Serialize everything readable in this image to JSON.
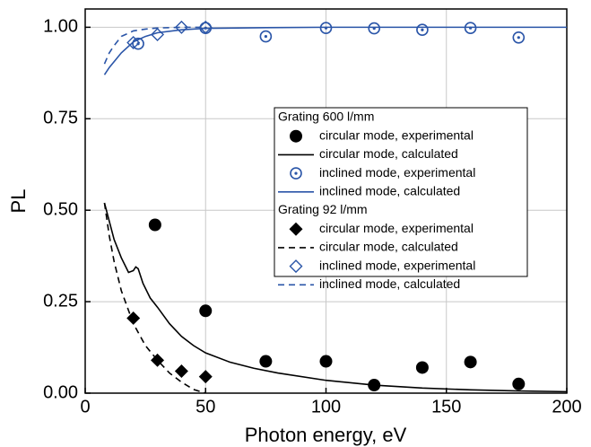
{
  "chart_data": {
    "type": "line",
    "x_label": "Photon energy, eV",
    "y_label": "PL",
    "xlim": [
      0,
      200
    ],
    "ylim": [
      0,
      1.05
    ],
    "xticks": [
      0,
      50,
      100,
      150,
      200
    ],
    "yticks": [
      {
        "value": 0,
        "label": "0.00"
      },
      {
        "value": 0.25,
        "label": "0.25"
      },
      {
        "value": 0.5,
        "label": "0.50"
      },
      {
        "value": 0.75,
        "label": "0.75"
      },
      {
        "value": 1,
        "label": "1.00"
      }
    ],
    "grid": true,
    "groups": [
      {
        "title": "Grating 600 l/mm",
        "series": [
          {
            "name": "circular mode, experimental",
            "color": "#000000",
            "marker": "circle",
            "line": null,
            "x": [
              29,
              50,
              75,
              100,
              120,
              140,
              160,
              180
            ],
            "values": [
              0.46,
              0.225,
              0.087,
              0.087,
              0.022,
              0.07,
              0.085,
              0.025
            ]
          },
          {
            "name": "circular mode, calculated",
            "color": "#000000",
            "marker": null,
            "line": "solid",
            "x": [
              8,
              10,
              12,
              15,
              18,
              20,
              21,
              22,
              24,
              27,
              30,
              35,
              40,
              45,
              50,
              60,
              70,
              80,
              100,
              120,
              140,
              160,
              180,
              200
            ],
            "values": [
              0.52,
              0.47,
              0.42,
              0.37,
              0.33,
              0.335,
              0.345,
              0.34,
              0.3,
              0.26,
              0.235,
              0.19,
              0.155,
              0.13,
              0.11,
              0.085,
              0.068,
              0.055,
              0.035,
              0.022,
              0.014,
              0.009,
              0.006,
              0.004
            ]
          },
          {
            "name": "inclined mode, experimental",
            "color": "#2a55a8",
            "marker": "circle-dot",
            "line": null,
            "x": [
              22,
              50,
              75,
              100,
              120,
              140,
              160,
              180
            ],
            "values": [
              0.955,
              0.998,
              0.975,
              0.998,
              0.997,
              0.993,
              0.998,
              0.972
            ]
          },
          {
            "name": "inclined mode, calculated",
            "color": "#2a55a8",
            "marker": null,
            "line": "solid",
            "x": [
              8,
              10,
              15,
              20,
              25,
              30,
              40,
              50,
              75,
              100,
              200
            ],
            "values": [
              0.87,
              0.89,
              0.93,
              0.96,
              0.975,
              0.985,
              0.993,
              0.997,
              0.999,
              1.0,
              1.0
            ]
          }
        ]
      },
      {
        "title": "Grating 92 l/mm",
        "series": [
          {
            "name": "circular mode, experimental",
            "color": "#000000",
            "marker": "diamond",
            "line": null,
            "x": [
              20,
              30,
              40,
              50
            ],
            "values": [
              0.205,
              0.09,
              0.06,
              0.045
            ]
          },
          {
            "name": "circular mode, calculated",
            "color": "#000000",
            "marker": null,
            "line": "dashed",
            "x": [
              8,
              10,
              12,
              15,
              20,
              25,
              30,
              35,
              40,
              45,
              50
            ],
            "values": [
              0.52,
              0.43,
              0.36,
              0.28,
              0.19,
              0.13,
              0.09,
              0.055,
              0.03,
              0.01,
              0.0
            ]
          },
          {
            "name": "inclined mode, experimental",
            "color": "#2a55a8",
            "marker": "diamond-open",
            "line": null,
            "x": [
              20,
              30,
              40,
              50
            ],
            "values": [
              0.958,
              0.98,
              1.0,
              1.0
            ]
          },
          {
            "name": "inclined mode, calculated",
            "color": "#2a55a8",
            "marker": null,
            "line": "dashed",
            "x": [
              8,
              10,
              12,
              15,
              20,
              25,
              30,
              40,
              50
            ],
            "values": [
              0.9,
              0.93,
              0.95,
              0.975,
              0.99,
              0.995,
              0.998,
              1.0,
              1.0
            ]
          }
        ]
      }
    ]
  }
}
